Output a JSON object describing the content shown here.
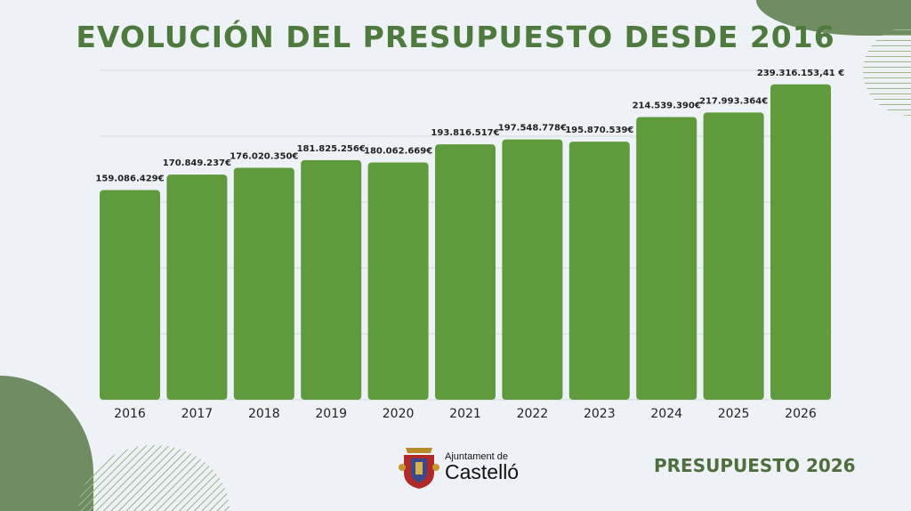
{
  "title": "EVOLUCIÓN DEL PRESUPUESTO DESDE 2016",
  "footer": "PRESUPUESTO 2026",
  "logo": {
    "line1": "Ajuntament de",
    "line2": "Castelló"
  },
  "colors": {
    "bar": "#5f9a3c",
    "title": "#4e7a3e",
    "accent": "#6f8c62",
    "background": "#eef2f7"
  },
  "chart_data": {
    "type": "bar",
    "title": "EVOLUCIÓN DEL PRESUPUESTO DESDE 2016",
    "categories": [
      "2016",
      "2017",
      "2018",
      "2019",
      "2020",
      "2021",
      "2022",
      "2023",
      "2024",
      "2025",
      "2026"
    ],
    "values": [
      159086429,
      170849237,
      176020350,
      181825256,
      180062669,
      193816517,
      197548778,
      195870539,
      214539390,
      217993364,
      239316153.41
    ],
    "data_labels": [
      "159.086.429€",
      "170.849.237€",
      "176.020.350€",
      "181.825.256€",
      "180.062.669€",
      "193.816.517€",
      "197.548.778€",
      "195.870.539€",
      "214.539.390€",
      "217.993.364€",
      "239.316.153,41 €"
    ],
    "ylim": [
      0,
      250000000
    ],
    "grid": true,
    "xlabel": "",
    "ylabel": ""
  }
}
